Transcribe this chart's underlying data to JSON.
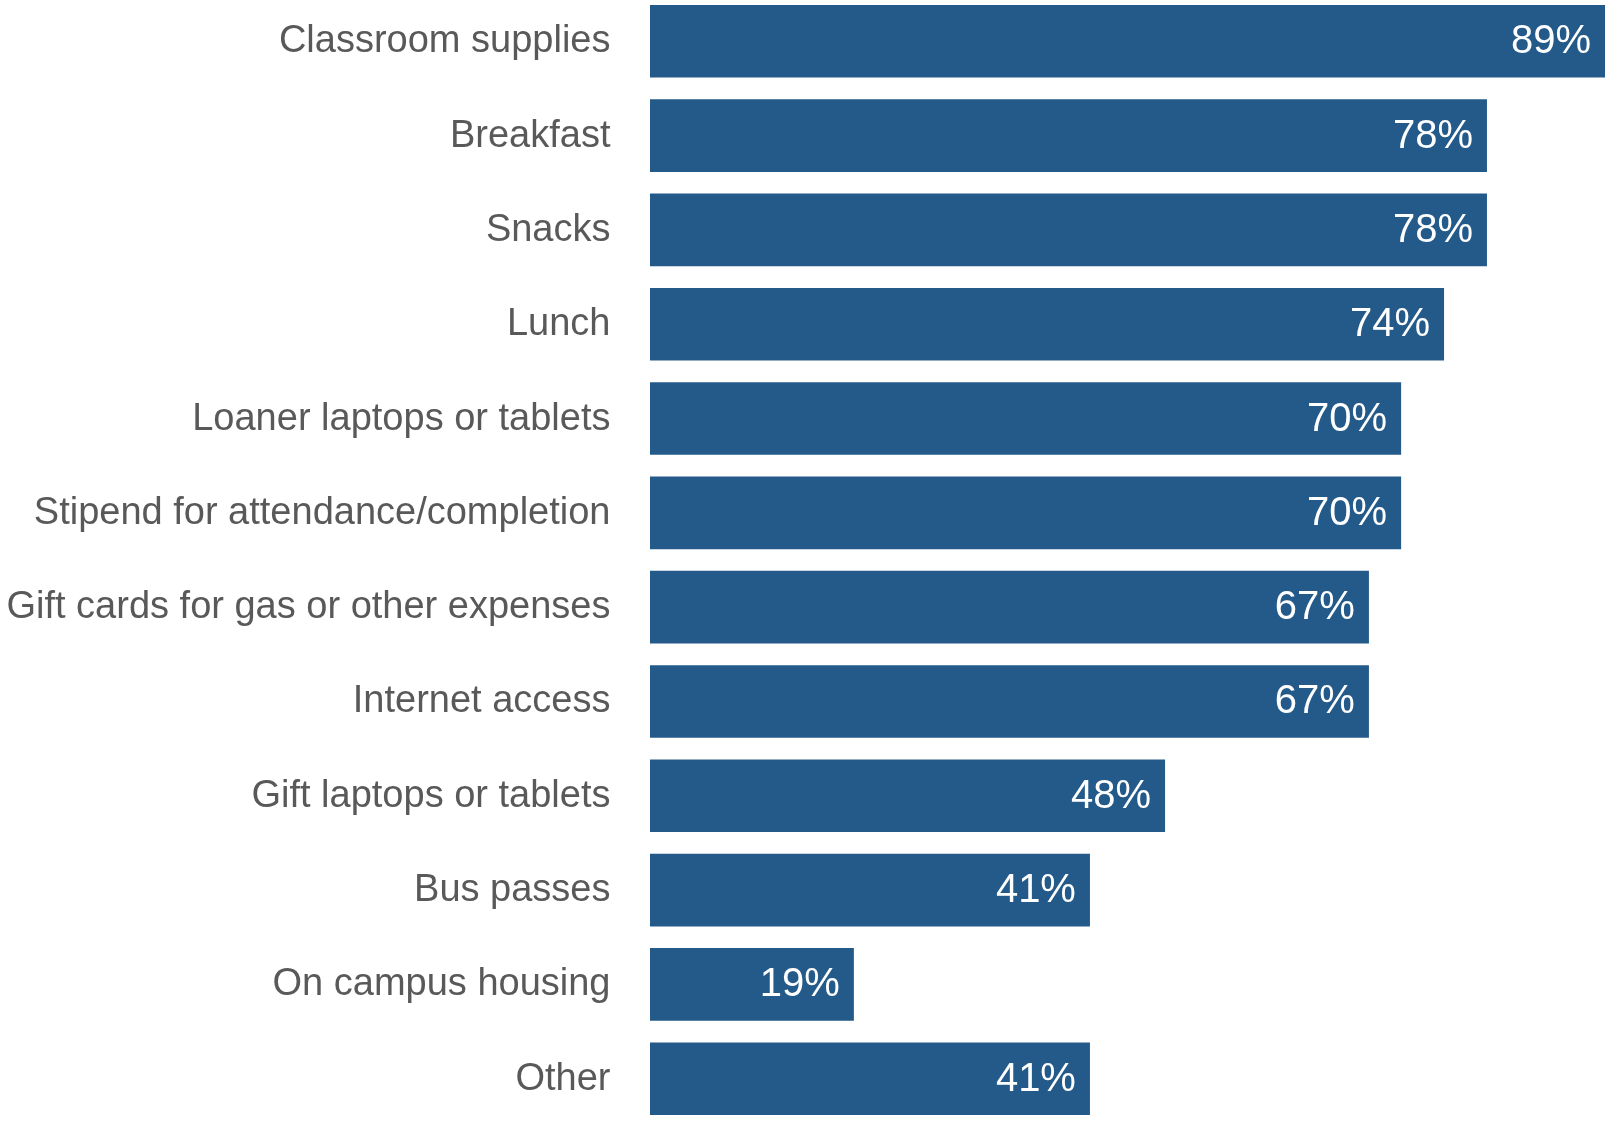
{
  "chart_data": {
    "type": "bar",
    "orientation": "horizontal",
    "categories": [
      "Classroom supplies",
      "Breakfast",
      "Snacks",
      "Lunch",
      "Loaner laptops or tablets",
      "Stipend for attendance/completion",
      "Gift cards for gas or other expenses",
      "Internet access",
      "Gift laptops or tablets",
      "Bus passes",
      "On campus housing",
      "Other"
    ],
    "values": [
      89,
      78,
      78,
      74,
      70,
      70,
      67,
      67,
      48,
      41,
      19,
      41
    ],
    "value_labels": [
      "89%",
      "78%",
      "78%",
      "74%",
      "70%",
      "70%",
      "67%",
      "67%",
      "48%",
      "41%",
      "19%",
      "41%"
    ],
    "color": "#245a8a"
  }
}
